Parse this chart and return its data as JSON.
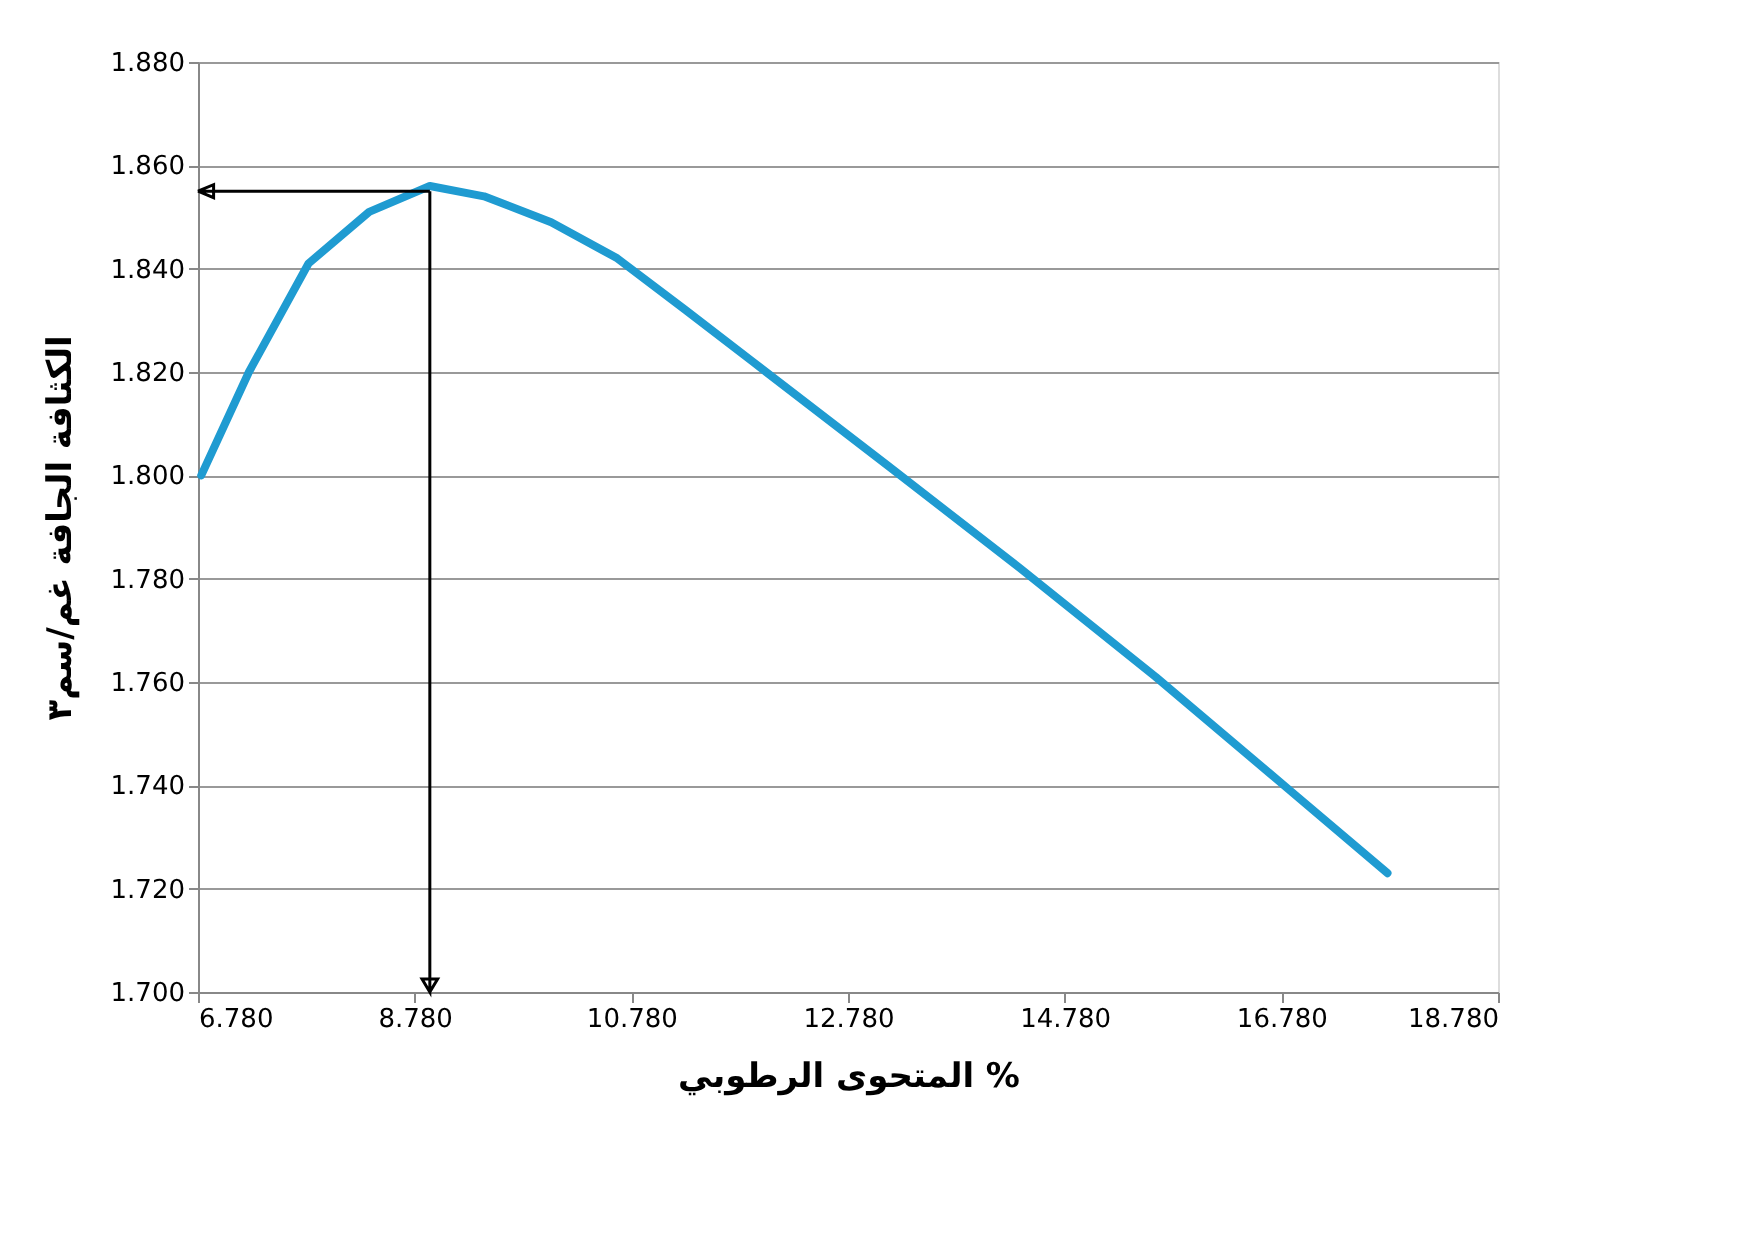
{
  "chart_data": {
    "type": "line",
    "xlabel": "المتحوى الرطوبي %",
    "ylabel": "الكثافة الجافة غم/سم٣",
    "x": [
      6.81,
      7.25,
      7.8,
      8.36,
      8.92,
      9.42,
      10.04,
      10.65,
      11.28,
      11.9,
      13.14,
      14.37,
      15.62,
      16.86,
      17.76
    ],
    "series": [
      {
        "color": "#1f9bd1",
        "values": [
          1.8,
          1.82,
          1.841,
          1.851,
          1.856,
          1.854,
          1.849,
          1.842,
          1.832,
          1.822,
          1.802,
          1.782,
          1.761,
          1.739,
          1.723
        ]
      }
    ],
    "xlim": [
      6.78,
      18.78
    ],
    "ylim": [
      1.7,
      1.88
    ],
    "xticks": [
      {
        "value": 6.78,
        "label": "6.780"
      },
      {
        "value": 8.78,
        "label": "8.780"
      },
      {
        "value": 10.78,
        "label": "10.780"
      },
      {
        "value": 12.78,
        "label": "12.780"
      },
      {
        "value": 14.78,
        "label": "14.780"
      },
      {
        "value": 16.78,
        "label": "16.780"
      },
      {
        "value": 18.78,
        "label": "18.780"
      }
    ],
    "yticks": [
      {
        "value": 1.7,
        "label": "1.700"
      },
      {
        "value": 1.72,
        "label": "1.720"
      },
      {
        "value": 1.74,
        "label": "1.740"
      },
      {
        "value": 1.76,
        "label": "1.760"
      },
      {
        "value": 1.78,
        "label": "1.780"
      },
      {
        "value": 1.8,
        "label": "1.800"
      },
      {
        "value": 1.82,
        "label": "1.820"
      },
      {
        "value": 1.84,
        "label": "1.840"
      },
      {
        "value": 1.86,
        "label": "1.860"
      },
      {
        "value": 1.88,
        "label": "1.880"
      }
    ],
    "ref_lines": [
      {
        "axis": "x",
        "value": 8.92,
        "color": "#000000",
        "line_style": "solid"
      },
      {
        "axis": "y",
        "value": 1.855,
        "color": "#000000",
        "line_style": "solid"
      }
    ],
    "grid": "y",
    "marker": "none",
    "line_style": "solid"
  }
}
